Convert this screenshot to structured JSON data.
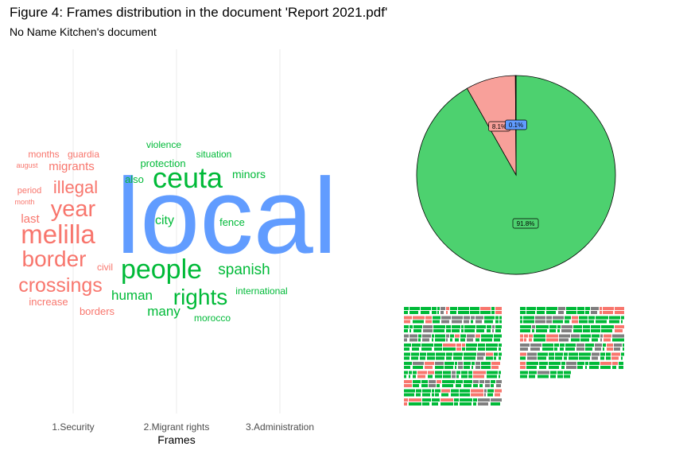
{
  "title": "Figure 4: Frames distribution in the document 'Report 2021.pdf'",
  "subtitle": "No Name Kitchen's document",
  "colors": {
    "security": "#F8766D",
    "migrant_rights": "#00BA38",
    "administration": "#619CFF",
    "pie_security": "#F8A09A",
    "pie_migrant_rights": "#4DD16F",
    "grey": "#7F7F7F",
    "grid": "#EBEBEB"
  },
  "chart_data": [
    {
      "type": "wordcloud",
      "xlabel": "Frames",
      "categories": [
        "1.Security",
        "2.Migrant rights",
        "3.Administration"
      ],
      "words": [
        {
          "text": "local",
          "frame": "3.Administration",
          "size": 135
        },
        {
          "text": "melilla",
          "frame": "1.Security",
          "size": 33
        },
        {
          "text": "year",
          "frame": "1.Security",
          "size": 29
        },
        {
          "text": "border",
          "frame": "1.Security",
          "size": 28
        },
        {
          "text": "crossings",
          "frame": "1.Security",
          "size": 25
        },
        {
          "text": "illegal",
          "frame": "1.Security",
          "size": 22
        },
        {
          "text": "migrants",
          "frame": "1.Security",
          "size": 15
        },
        {
          "text": "last",
          "frame": "1.Security",
          "size": 15
        },
        {
          "text": "increase",
          "frame": "1.Security",
          "size": 13
        },
        {
          "text": "borders",
          "frame": "1.Security",
          "size": 13
        },
        {
          "text": "guardia",
          "frame": "1.Security",
          "size": 12
        },
        {
          "text": "months",
          "frame": "1.Security",
          "size": 12
        },
        {
          "text": "civil",
          "frame": "1.Security",
          "size": 12
        },
        {
          "text": "period",
          "frame": "1.Security",
          "size": 11
        },
        {
          "text": "august",
          "frame": "1.Security",
          "size": 9
        },
        {
          "text": "month",
          "frame": "1.Security",
          "size": 9
        },
        {
          "text": "ceuta",
          "frame": "2.Migrant rights",
          "size": 36
        },
        {
          "text": "people",
          "frame": "2.Migrant rights",
          "size": 34
        },
        {
          "text": "rights",
          "frame": "2.Migrant rights",
          "size": 28
        },
        {
          "text": "spanish",
          "frame": "2.Migrant rights",
          "size": 19
        },
        {
          "text": "human",
          "frame": "2.Migrant rights",
          "size": 17
        },
        {
          "text": "many",
          "frame": "2.Migrant rights",
          "size": 17
        },
        {
          "text": "city",
          "frame": "2.Migrant rights",
          "size": 16
        },
        {
          "text": "minors",
          "frame": "2.Migrant rights",
          "size": 14
        },
        {
          "text": "also",
          "frame": "2.Migrant rights",
          "size": 13
        },
        {
          "text": "protection",
          "frame": "2.Migrant rights",
          "size": 13
        },
        {
          "text": "fence",
          "frame": "2.Migrant rights",
          "size": 13
        },
        {
          "text": "situation",
          "frame": "2.Migrant rights",
          "size": 12
        },
        {
          "text": "violence",
          "frame": "2.Migrant rights",
          "size": 12
        },
        {
          "text": "international",
          "frame": "2.Migrant rights",
          "size": 12
        },
        {
          "text": "morocco",
          "frame": "2.Migrant rights",
          "size": 12
        }
      ]
    },
    {
      "type": "pie",
      "slices": [
        {
          "frame": "2.Migrant rights",
          "value": 91.8,
          "label": "91.8%"
        },
        {
          "frame": "1.Security",
          "value": 8.1,
          "label": "8.1%"
        },
        {
          "frame": "3.Administration",
          "value": 0.1,
          "label": "0.1%"
        }
      ]
    },
    {
      "type": "waffle",
      "description_free": true,
      "blocks": [
        {
          "rows": 11,
          "dominant": "2.Migrant rights"
        },
        {
          "rows": 6,
          "dominant": "2.Migrant rights"
        }
      ]
    }
  ]
}
